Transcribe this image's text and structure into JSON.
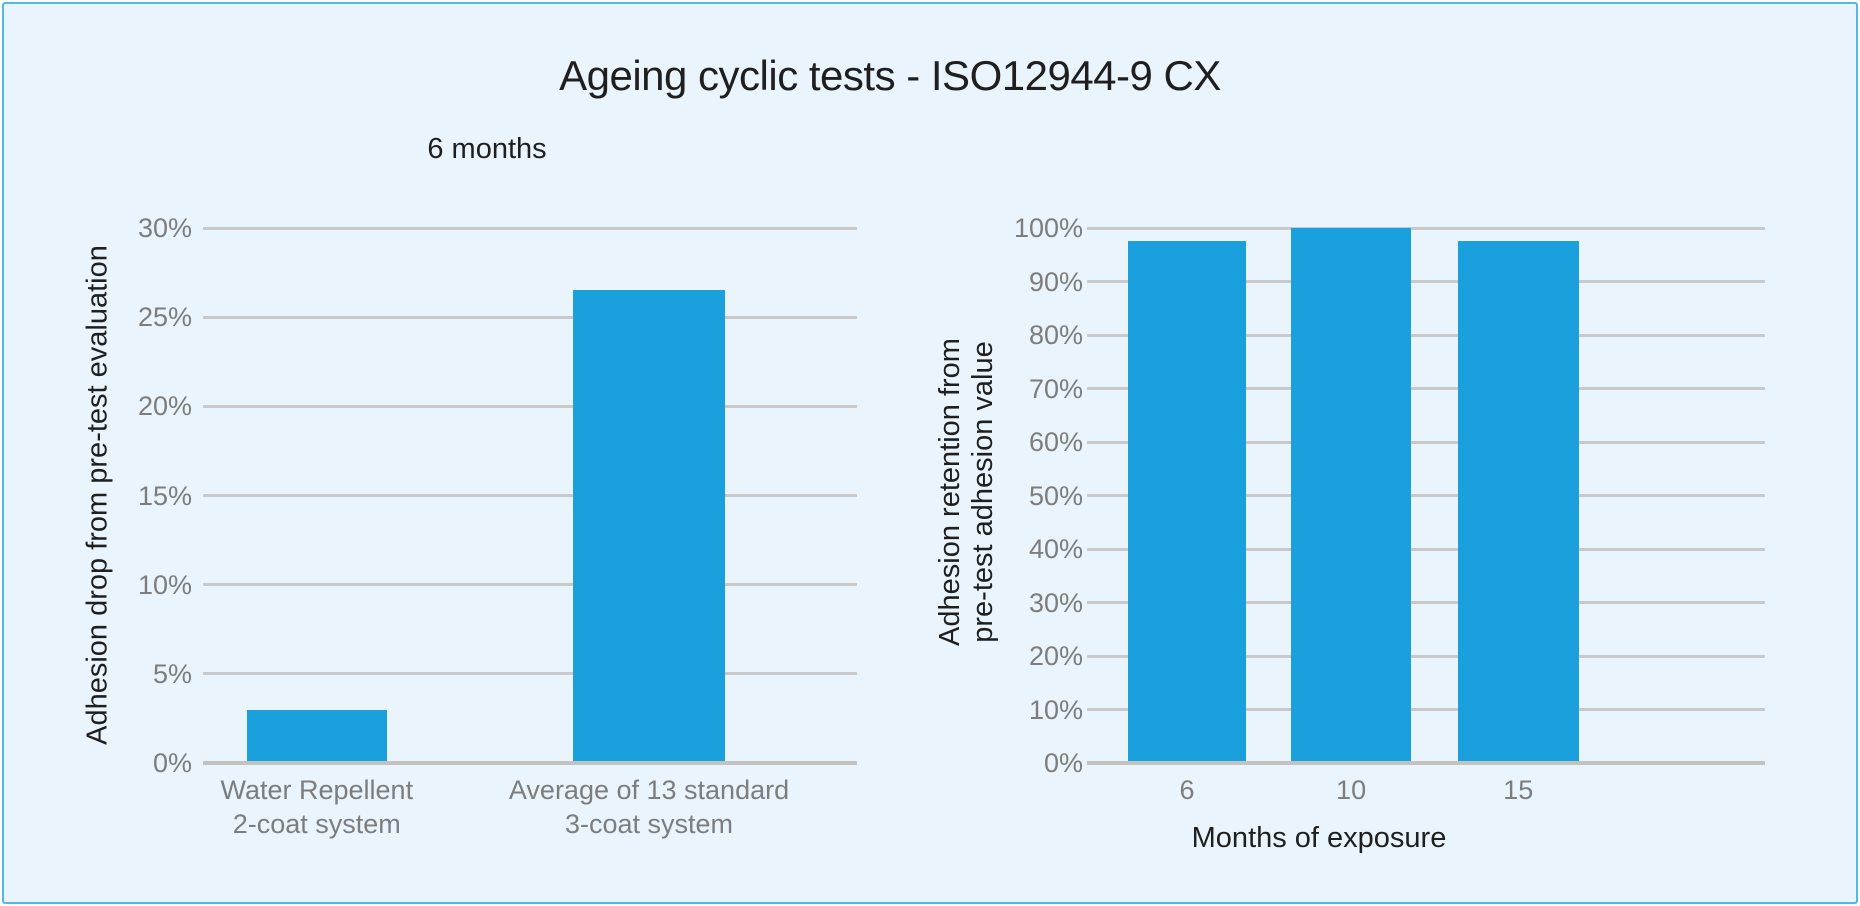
{
  "page": {
    "title": "Ageing cyclic tests - ISO12944-9 CX"
  },
  "colors": {
    "background": "#ffffff",
    "panel_bg": "#e9f4fc",
    "panel_border": "#53b7e7",
    "bar": "#1ba0de",
    "gridline": "#c9c9c9",
    "axis_line": "#c2c2c2",
    "tick_label": "#7d7d7d",
    "text": "#1f1f1f"
  },
  "chart_data": [
    {
      "id": "left",
      "type": "bar",
      "title": "6 months",
      "ylabel": "Adhesion drop from pre-test evaluation",
      "xlabel": "",
      "categories": [
        "Water Repellent\n2-coat system",
        "Average of 13 standard\n3-coat system"
      ],
      "values": [
        3,
        26.5
      ],
      "ylim": [
        0,
        30
      ],
      "ytick_step": 5,
      "ytick_format": "percent",
      "grid": true,
      "legend": "none"
    },
    {
      "id": "right",
      "type": "bar",
      "title": "",
      "ylabel": "Adhesion retention from\npre-test adhesion value",
      "xlabel": "Months of exposure",
      "categories": [
        "6",
        "10",
        "15"
      ],
      "values": [
        97.5,
        100,
        97.5
      ],
      "ylim": [
        0,
        100
      ],
      "ytick_step": 10,
      "ytick_format": "percent",
      "grid": true,
      "legend": "none"
    }
  ]
}
